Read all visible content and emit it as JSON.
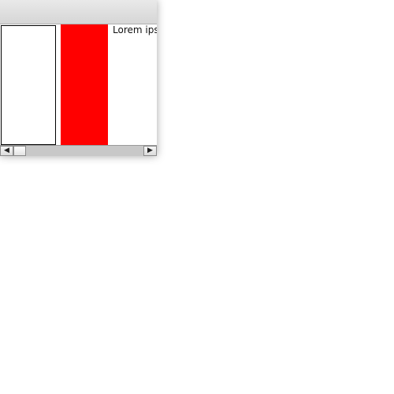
{
  "content": {
    "text": "Lorem ipsum"
  },
  "icons": {
    "scroll_left": "◀",
    "scroll_right": "▶"
  },
  "colors": {
    "red_box": "#ff0000",
    "white_box_border": "#000000"
  }
}
